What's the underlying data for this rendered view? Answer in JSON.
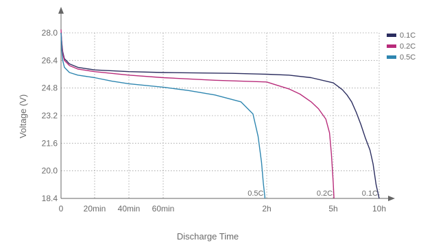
{
  "chart_data": {
    "type": "line",
    "title": "",
    "xlabel": "Discharge Time",
    "ylabel": "Voltage (V)",
    "ylim": [
      18.4,
      28.0
    ],
    "y_ticks": [
      "28.0",
      "26.4",
      "24.8",
      "23.2",
      "21.6",
      "20.0",
      "18.4"
    ],
    "x_ticks": [
      {
        "label": "0",
        "t": 0
      },
      {
        "label": "20min",
        "t": 20
      },
      {
        "label": "40min",
        "t": 40
      },
      {
        "label": "60min",
        "t": 60
      },
      {
        "label": "2h",
        "t": 120
      },
      {
        "label": "5h",
        "t": 300
      },
      {
        "label": "10h",
        "t": 600
      }
    ],
    "x_unit": "minutes",
    "x_scale": "piecewise (0-60min, 60min-2h, 2h-5h, 5h-10h)",
    "grid": true,
    "grid_style": "dotted",
    "legend_position": "top-right",
    "series": [
      {
        "name": "0.1C",
        "color": "#2b2d5f",
        "end_label": "0.1C",
        "points": [
          [
            0,
            28.0
          ],
          [
            0.5,
            27.4
          ],
          [
            1,
            26.9
          ],
          [
            2,
            26.5
          ],
          [
            5,
            26.2
          ],
          [
            10,
            26.0
          ],
          [
            20,
            25.85
          ],
          [
            40,
            25.75
          ],
          [
            60,
            25.7
          ],
          [
            100,
            25.65
          ],
          [
            120,
            25.6
          ],
          [
            180,
            25.55
          ],
          [
            240,
            25.4
          ],
          [
            300,
            25.1
          ],
          [
            330,
            24.9
          ],
          [
            360,
            24.7
          ],
          [
            390,
            24.4
          ],
          [
            420,
            24.0
          ],
          [
            450,
            23.4
          ],
          [
            480,
            22.7
          ],
          [
            510,
            21.9
          ],
          [
            540,
            21.2
          ],
          [
            560,
            20.4
          ],
          [
            580,
            19.2
          ],
          [
            600,
            18.4
          ]
        ]
      },
      {
        "name": "0.2C",
        "color": "#b82b7a",
        "end_label": "0.2C",
        "points": [
          [
            0,
            28.2
          ],
          [
            0.5,
            27.3
          ],
          [
            1,
            26.8
          ],
          [
            2,
            26.4
          ],
          [
            5,
            26.1
          ],
          [
            10,
            25.9
          ],
          [
            20,
            25.75
          ],
          [
            40,
            25.55
          ],
          [
            60,
            25.4
          ],
          [
            90,
            25.25
          ],
          [
            120,
            25.15
          ],
          [
            150,
            24.95
          ],
          [
            180,
            24.75
          ],
          [
            210,
            24.45
          ],
          [
            240,
            24.0
          ],
          [
            260,
            23.6
          ],
          [
            280,
            23.0
          ],
          [
            290,
            22.2
          ],
          [
            295,
            21.0
          ],
          [
            300,
            19.3
          ],
          [
            305,
            18.4
          ]
        ]
      },
      {
        "name": "0.5C",
        "color": "#2e86b0",
        "end_label": "0.5C",
        "points": [
          [
            0,
            28.0
          ],
          [
            0.5,
            27.0
          ],
          [
            1,
            26.4
          ],
          [
            2,
            26.0
          ],
          [
            5,
            25.7
          ],
          [
            10,
            25.55
          ],
          [
            20,
            25.4
          ],
          [
            30,
            25.2
          ],
          [
            40,
            25.05
          ],
          [
            50,
            24.95
          ],
          [
            60,
            24.85
          ],
          [
            75,
            24.65
          ],
          [
            90,
            24.4
          ],
          [
            105,
            24.0
          ],
          [
            112,
            23.3
          ],
          [
            115,
            22.0
          ],
          [
            117,
            20.5
          ],
          [
            118,
            19.3
          ],
          [
            119,
            18.4
          ]
        ]
      }
    ]
  }
}
